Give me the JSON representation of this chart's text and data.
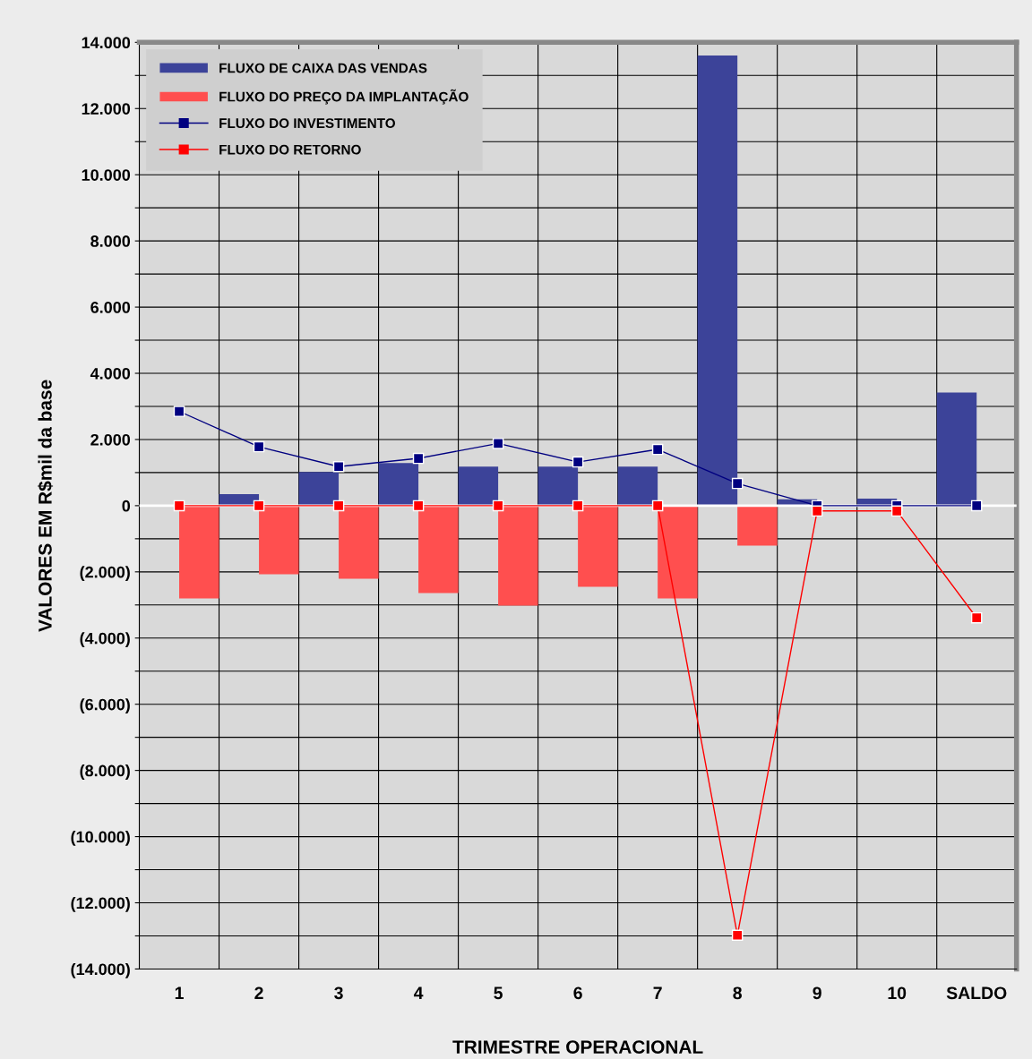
{
  "chart_data": {
    "type": "bar",
    "xlabel": "TRIMESTRE OPERACIONAL",
    "ylabel": "VALORES EM R$mil da base",
    "categories": [
      "1",
      "2",
      "3",
      "4",
      "5",
      "6",
      "7",
      "8",
      "9",
      "10",
      "SALDO"
    ],
    "series": [
      {
        "name": "FLUXO DE CAIXA DAS VENDAS",
        "color": "#3c4399",
        "values": [
          0,
          350,
          1020,
          1290,
          1180,
          1180,
          1180,
          13600,
          190,
          210,
          3420
        ]
      },
      {
        "name": "FLUXO DO PREÇO DA IMPLANTAÇÃO",
        "color": "#ff4f4f",
        "values": [
          -2800,
          -2070,
          -2210,
          -2640,
          -3020,
          -2450,
          -2800,
          -1210,
          0,
          0,
          0
        ]
      },
      {
        "name": "FLUXO DO INVESTIMENTO",
        "type": "line",
        "color": "#000080",
        "marker": "square",
        "values": [
          2850,
          1780,
          1180,
          1430,
          1880,
          1320,
          1700,
          670,
          0,
          0,
          0
        ]
      },
      {
        "name": "FLUXO DO RETORNO",
        "type": "line",
        "color": "#ff0000",
        "marker": "square",
        "values": [
          0,
          0,
          0,
          0,
          0,
          0,
          0,
          -12980,
          -160,
          -160,
          -3390
        ]
      }
    ],
    "ylim": [
      -14000,
      14000
    ],
    "yticks": [
      {
        "value": -14000,
        "label": "(14.000)"
      },
      {
        "value": -13000,
        "label": null
      },
      {
        "value": -12000,
        "label": "(12.000)"
      },
      {
        "value": -11000,
        "label": null
      },
      {
        "value": -10000,
        "label": "(10.000)"
      },
      {
        "value": -9000,
        "label": null
      },
      {
        "value": -8000,
        "label": "(8.000)"
      },
      {
        "value": -7000,
        "label": null
      },
      {
        "value": -6000,
        "label": "(6.000)"
      },
      {
        "value": -5000,
        "label": null
      },
      {
        "value": -4000,
        "label": "(4.000)"
      },
      {
        "value": -3000,
        "label": null
      },
      {
        "value": -2000,
        "label": "(2.000)"
      },
      {
        "value": -1000,
        "label": null
      },
      0,
      {
        "value": 1000,
        "label": null
      },
      {
        "value": 2000,
        "label": "2.000"
      },
      {
        "value": 3000,
        "label": null
      },
      {
        "value": 4000,
        "label": "4.000"
      },
      {
        "value": 5000,
        "label": null
      },
      {
        "value": 6000,
        "label": "6.000"
      },
      {
        "value": 7000,
        "label": null
      },
      {
        "value": 8000,
        "label": "8.000"
      },
      {
        "value": 9000,
        "label": null
      },
      {
        "value": 10000,
        "label": "10.000"
      },
      {
        "value": 11000,
        "label": null
      },
      {
        "value": 12000,
        "label": "12.000"
      },
      {
        "value": 13000,
        "label": null
      },
      {
        "value": 14000,
        "label": "14.000"
      }
    ],
    "grid": true,
    "legend": "top left",
    "line_style": "solid"
  }
}
